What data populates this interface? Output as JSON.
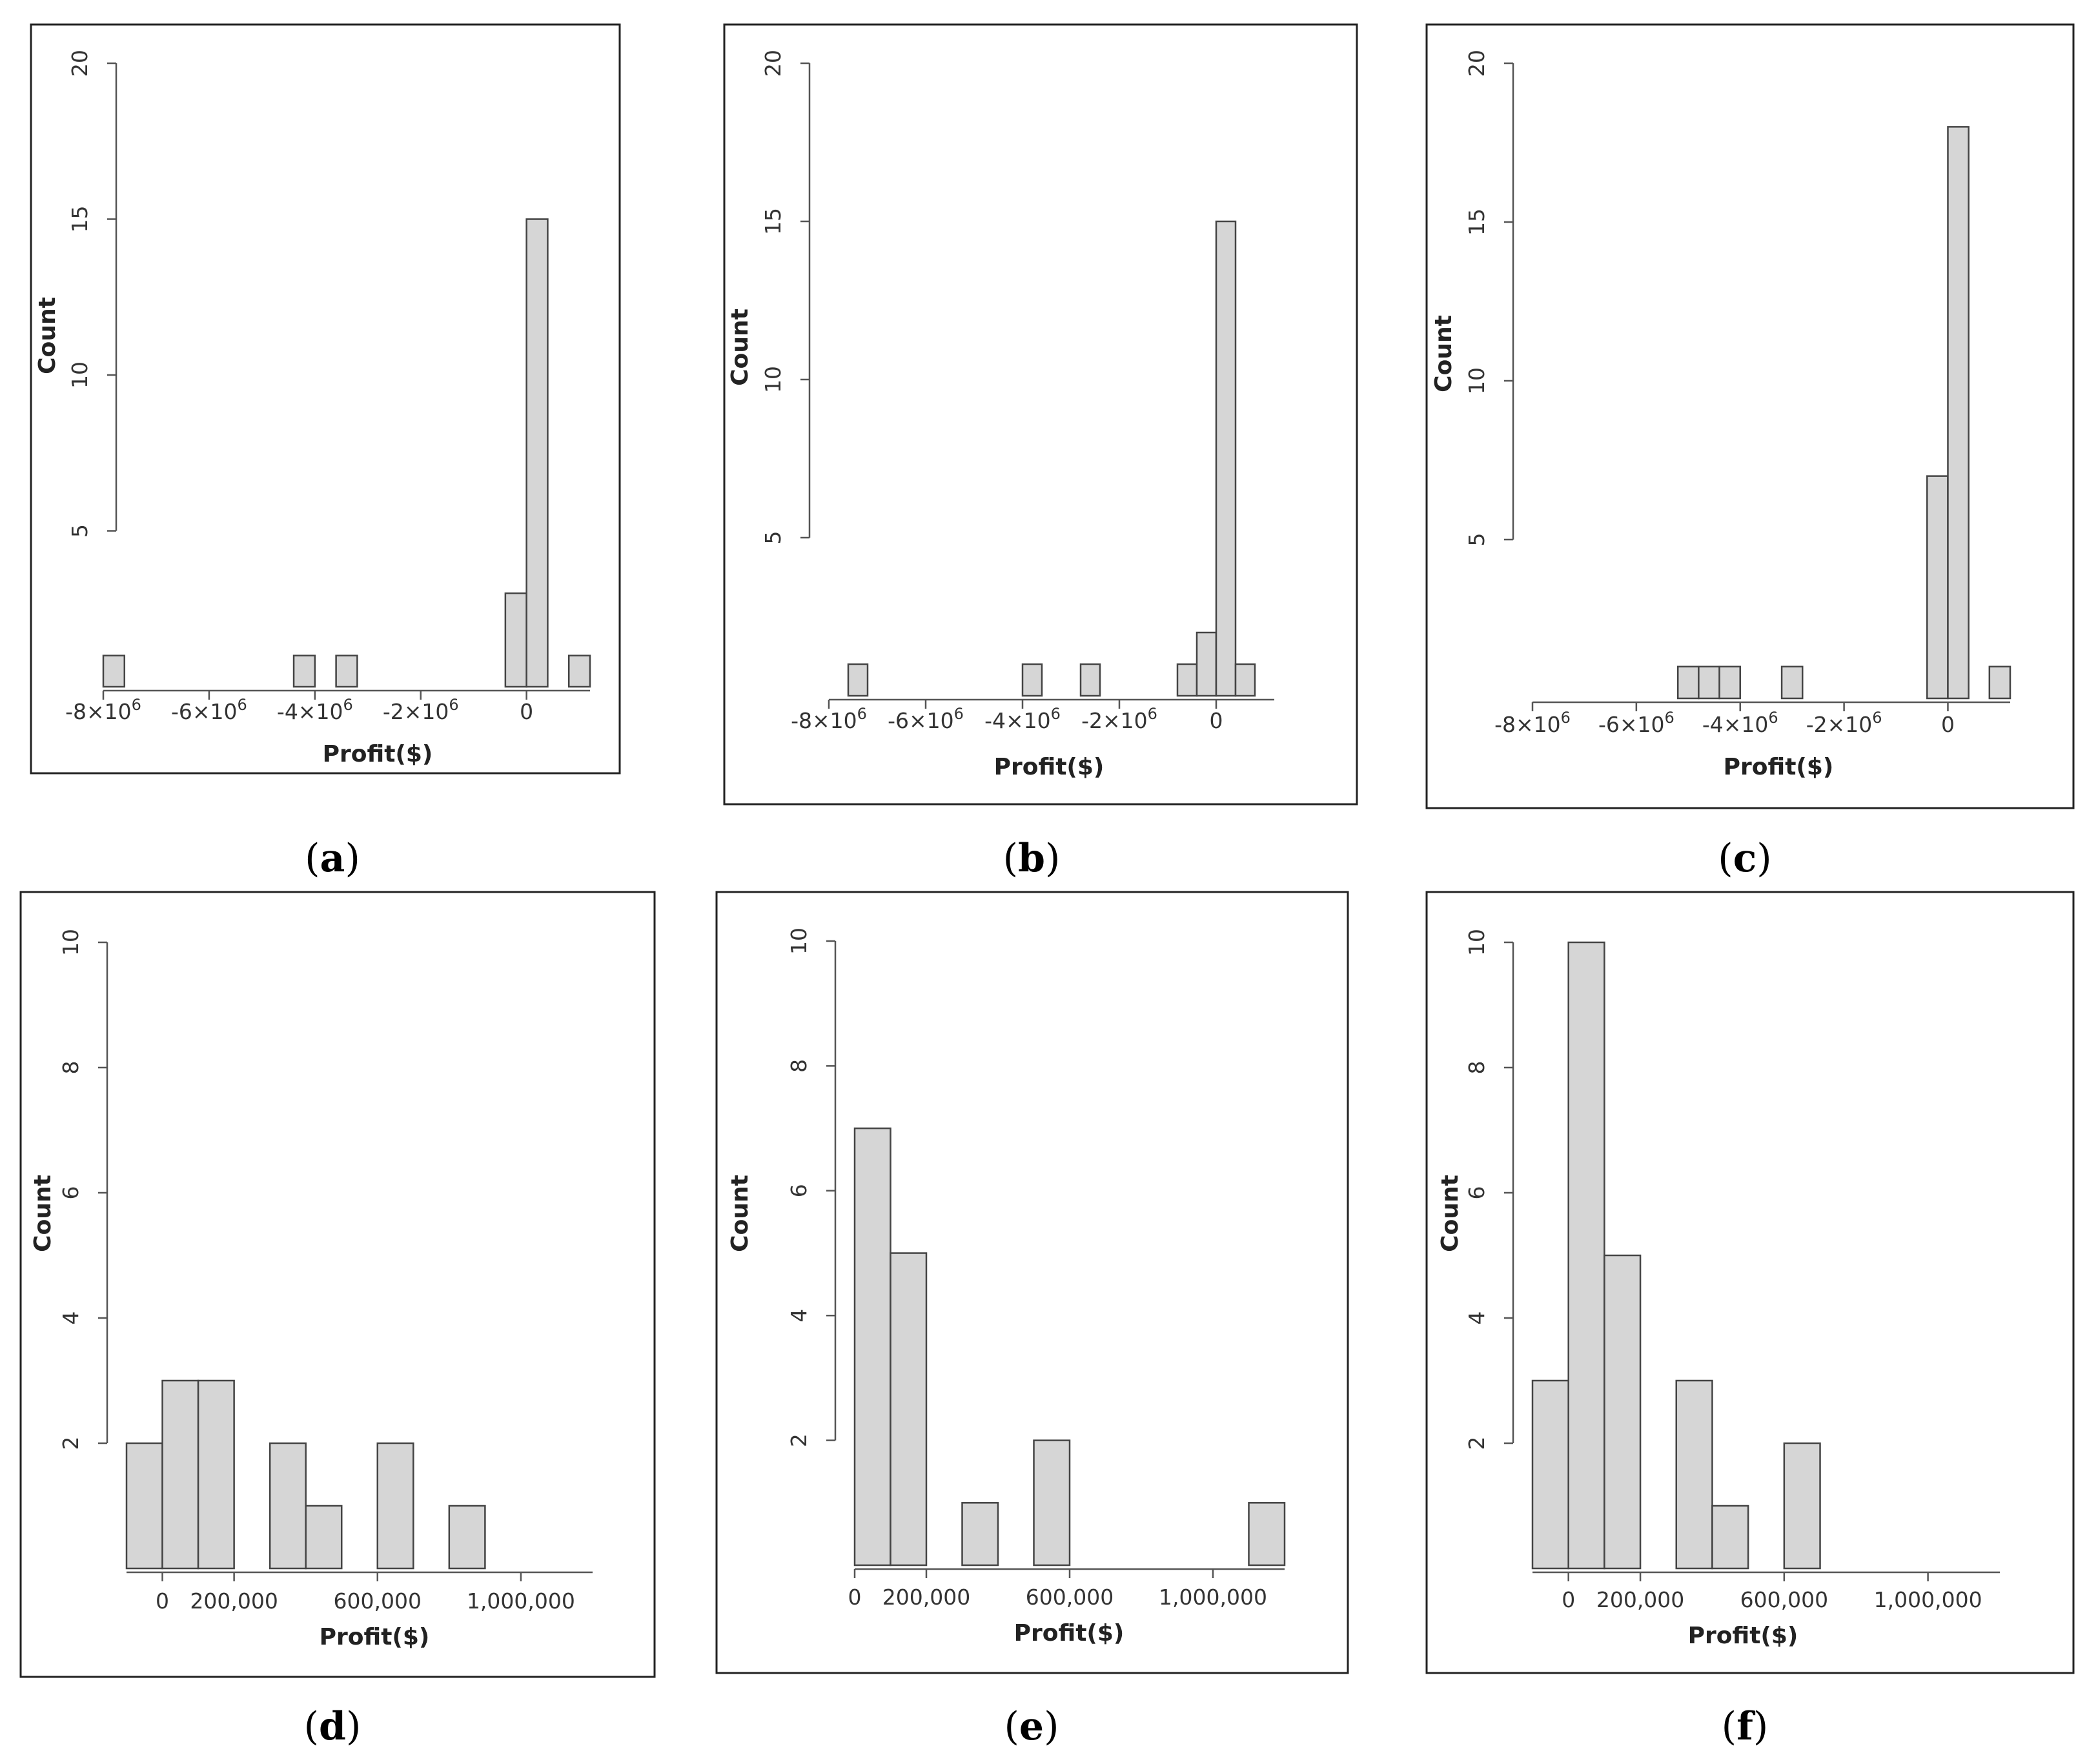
{
  "colors": {
    "bar_fill": "#d6d6d6",
    "bar_stroke": "#444444",
    "axis": "#555555",
    "frame": "#222222"
  },
  "chart_data": [
    {
      "type": "bar",
      "panel": "a",
      "caption_open": "(",
      "caption_letter": "a",
      "caption_close": ")",
      "xlabel": "Profit($)",
      "ylabel": "Count",
      "xlim": [
        -8000000,
        1200000
      ],
      "ylim": [
        0,
        20
      ],
      "yticks": [
        5,
        10,
        15,
        20
      ],
      "xticks": [
        {
          "value": -8000000,
          "label": "-8×10",
          "sup": "6"
        },
        {
          "value": -6000000,
          "label": "-6×10",
          "sup": "6"
        },
        {
          "value": -4000000,
          "label": "-4×10",
          "sup": "6"
        },
        {
          "value": -2000000,
          "label": "-2×10",
          "sup": "6"
        },
        {
          "value": 0,
          "label": "0",
          "sup": ""
        }
      ],
      "bin_width": 400000,
      "bins": [
        {
          "start": -8000000,
          "count": 1
        },
        {
          "start": -4400000,
          "count": 1
        },
        {
          "start": -3600000,
          "count": 1
        },
        {
          "start": -400000,
          "count": 3
        },
        {
          "start": 0,
          "count": 15
        },
        {
          "start": 800000,
          "count": 1
        }
      ]
    },
    {
      "type": "bar",
      "panel": "b",
      "caption_open": "(",
      "caption_letter": "b",
      "caption_close": ")",
      "xlabel": "Profit($)",
      "ylabel": "Count",
      "xlim": [
        -8000000,
        1200000
      ],
      "ylim": [
        0,
        20
      ],
      "yticks": [
        5,
        10,
        15,
        20
      ],
      "xticks": [
        {
          "value": -8000000,
          "label": "-8×10",
          "sup": "6"
        },
        {
          "value": -6000000,
          "label": "-6×10",
          "sup": "6"
        },
        {
          "value": -4000000,
          "label": "-4×10",
          "sup": "6"
        },
        {
          "value": -2000000,
          "label": "-2×10",
          "sup": "6"
        },
        {
          "value": 0,
          "label": "0",
          "sup": ""
        }
      ],
      "bin_width": 400000,
      "bins": [
        {
          "start": -7600000,
          "count": 1
        },
        {
          "start": -4000000,
          "count": 1
        },
        {
          "start": -2800000,
          "count": 1
        },
        {
          "start": -800000,
          "count": 1
        },
        {
          "start": -400000,
          "count": 2
        },
        {
          "start": 0,
          "count": 15
        },
        {
          "start": 400000,
          "count": 1
        }
      ]
    },
    {
      "type": "bar",
      "panel": "c",
      "caption_open": "(",
      "caption_letter": "c",
      "caption_close": ")",
      "xlabel": "Profit($)",
      "ylabel": "Count",
      "xlim": [
        -8000000,
        1200000
      ],
      "ylim": [
        0,
        20
      ],
      "yticks": [
        5,
        10,
        15,
        20
      ],
      "xticks": [
        {
          "value": -8000000,
          "label": "-8×10",
          "sup": "6"
        },
        {
          "value": -6000000,
          "label": "-6×10",
          "sup": "6"
        },
        {
          "value": -4000000,
          "label": "-4×10",
          "sup": "6"
        },
        {
          "value": -2000000,
          "label": "-2×10",
          "sup": "6"
        },
        {
          "value": 0,
          "label": "0",
          "sup": ""
        }
      ],
      "bin_width": 400000,
      "bins": [
        {
          "start": -5200000,
          "count": 1
        },
        {
          "start": -4800000,
          "count": 1
        },
        {
          "start": -4400000,
          "count": 1
        },
        {
          "start": -3200000,
          "count": 1
        },
        {
          "start": -400000,
          "count": 7
        },
        {
          "start": 0,
          "count": 18
        },
        {
          "start": 800000,
          "count": 1
        }
      ]
    },
    {
      "type": "bar",
      "panel": "d",
      "caption_open": "(",
      "caption_letter": "d",
      "caption_close": ")",
      "xlabel": "Profit($)",
      "ylabel": "Count",
      "xlim": [
        -100000,
        1200000
      ],
      "ylim": [
        0,
        10
      ],
      "yticks": [
        2,
        4,
        6,
        8,
        10
      ],
      "xticks": [
        {
          "value": 0,
          "label": "0",
          "sup": ""
        },
        {
          "value": 200000,
          "label": "200,000",
          "sup": ""
        },
        {
          "value": 600000,
          "label": "600,000",
          "sup": ""
        },
        {
          "value": 1000000,
          "label": "1,000,000",
          "sup": ""
        }
      ],
      "bin_width": 100000,
      "bins": [
        {
          "start": -100000,
          "count": 2
        },
        {
          "start": 0,
          "count": 3
        },
        {
          "start": 100000,
          "count": 3
        },
        {
          "start": 300000,
          "count": 2
        },
        {
          "start": 400000,
          "count": 1
        },
        {
          "start": 600000,
          "count": 2
        },
        {
          "start": 800000,
          "count": 1
        }
      ]
    },
    {
      "type": "bar",
      "panel": "e",
      "caption_open": "(",
      "caption_letter": "e",
      "caption_close": ")",
      "xlabel": "Profit($)",
      "ylabel": "Count",
      "xlim": [
        0,
        1200000
      ],
      "ylim": [
        0,
        10
      ],
      "yticks": [
        2,
        4,
        6,
        8,
        10
      ],
      "xticks": [
        {
          "value": 0,
          "label": "0",
          "sup": ""
        },
        {
          "value": 200000,
          "label": "200,000",
          "sup": ""
        },
        {
          "value": 600000,
          "label": "600,000",
          "sup": ""
        },
        {
          "value": 1000000,
          "label": "1,000,000",
          "sup": ""
        }
      ],
      "bin_width": 100000,
      "bins": [
        {
          "start": 0,
          "count": 7
        },
        {
          "start": 100000,
          "count": 5
        },
        {
          "start": 300000,
          "count": 1
        },
        {
          "start": 500000,
          "count": 2
        },
        {
          "start": 1100000,
          "count": 1
        }
      ]
    },
    {
      "type": "bar",
      "panel": "f",
      "caption_open": "(",
      "caption_letter": "f",
      "caption_close": ")",
      "xlabel": "Profit($)",
      "ylabel": "Count",
      "xlim": [
        -100000,
        1200000
      ],
      "ylim": [
        0,
        10
      ],
      "yticks": [
        2,
        4,
        6,
        8,
        10
      ],
      "xticks": [
        {
          "value": 0,
          "label": "0",
          "sup": ""
        },
        {
          "value": 200000,
          "label": "200,000",
          "sup": ""
        },
        {
          "value": 600000,
          "label": "600,000",
          "sup": ""
        },
        {
          "value": 1000000,
          "label": "1,000,000",
          "sup": ""
        }
      ],
      "bin_width": 100000,
      "bins": [
        {
          "start": -100000,
          "count": 3
        },
        {
          "start": 0,
          "count": 10
        },
        {
          "start": 100000,
          "count": 5
        },
        {
          "start": 300000,
          "count": 3
        },
        {
          "start": 400000,
          "count": 1
        },
        {
          "start": 600000,
          "count": 2
        }
      ]
    }
  ]
}
